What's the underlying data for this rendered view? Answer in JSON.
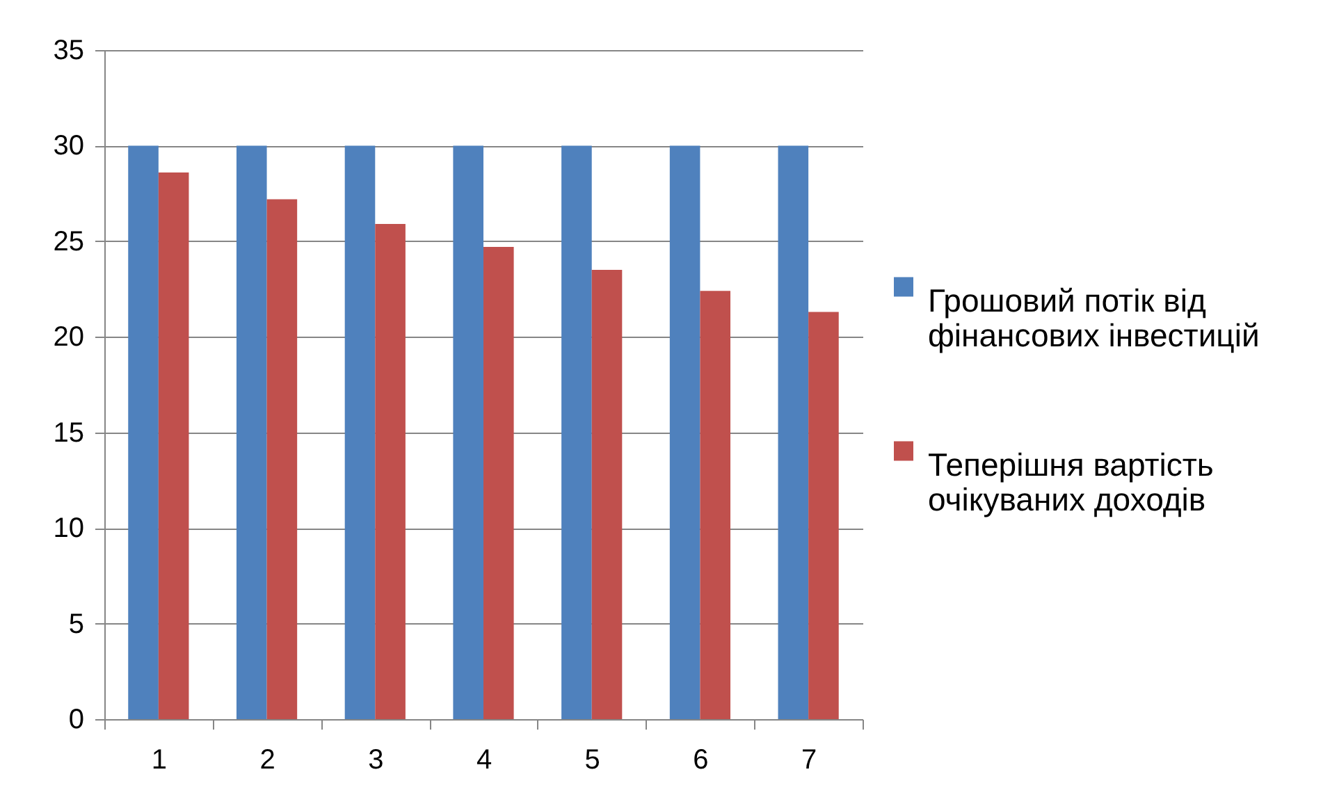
{
  "chart_data": {
    "type": "bar",
    "categories": [
      "1",
      "2",
      "3",
      "4",
      "5",
      "6",
      "7"
    ],
    "series": [
      {
        "name": "Грошовий потік від фінансових інвестицій",
        "color": "#4f81bd",
        "values": [
          30,
          30,
          30,
          30,
          30,
          30,
          30
        ]
      },
      {
        "name": "Теперішня вартість очікуваних доходів",
        "color": "#c0504d",
        "values": [
          28.6,
          27.2,
          25.9,
          24.7,
          23.5,
          22.4,
          21.3
        ]
      }
    ],
    "ylim": [
      0,
      35
    ],
    "yticks": [
      0,
      5,
      10,
      15,
      20,
      25,
      30,
      35
    ],
    "grid": "y",
    "legend": "right"
  }
}
